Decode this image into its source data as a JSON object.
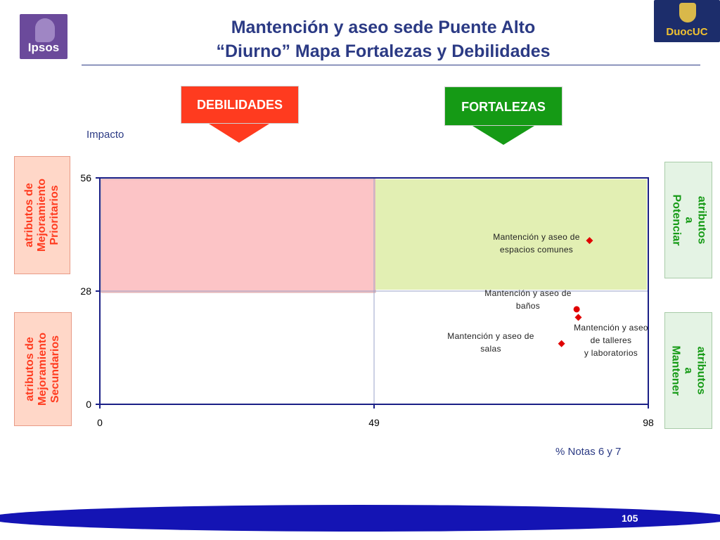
{
  "header": {
    "title_line1": "Mantención y aseo sede Puente Alto",
    "title_line2": "“Diurno” Mapa Fortalezas y Debilidades",
    "left_logo_text": "Ipsos",
    "right_logo_text": "DuocUC"
  },
  "arrows": {
    "weaknesses": "DEBILIDADES",
    "strengths": "FORTALEZAS"
  },
  "side_labels": {
    "top_left": "atributos de\nMejoramiento\nPrioritarios",
    "bottom_left": "atributos de\nMejoramiento\nSecundarios",
    "top_right": "atributos a\nPotenciar",
    "bottom_right": "atributos a\nMantener"
  },
  "colors": {
    "title": "#2b3a84",
    "weakness": "#ff3b1f",
    "strength": "#159a15",
    "quadrant_top_left": "#fcc4c6",
    "quadrant_top_right": "#e2efb3",
    "marker": "#e00000"
  },
  "chart_data": {
    "type": "scatter",
    "title": "",
    "xlabel": "% Notas 6 y 7",
    "ylabel": "Impacto",
    "xlim": [
      0,
      98
    ],
    "ylim": [
      0,
      56
    ],
    "x_ticks": [
      0,
      49,
      98
    ],
    "y_ticks": [
      0,
      28,
      56
    ],
    "points": [
      {
        "label": "Mantención y aseo de espacios comunes",
        "x": 87.5,
        "y": 40.5,
        "marker": "diamond"
      },
      {
        "label": "Mantención y aseo de baños",
        "x": 85.2,
        "y": 23.5,
        "marker": "circle"
      },
      {
        "label": "Mantención y aseo de talleres y laboratorios",
        "x": 85.5,
        "y": 21.5,
        "marker": "diamond"
      },
      {
        "label": "Mantención y aseo de salas",
        "x": 82.5,
        "y": 15.0,
        "marker": "diamond"
      }
    ],
    "grid": false,
    "legend": "none"
  },
  "footer": {
    "page": "105"
  }
}
